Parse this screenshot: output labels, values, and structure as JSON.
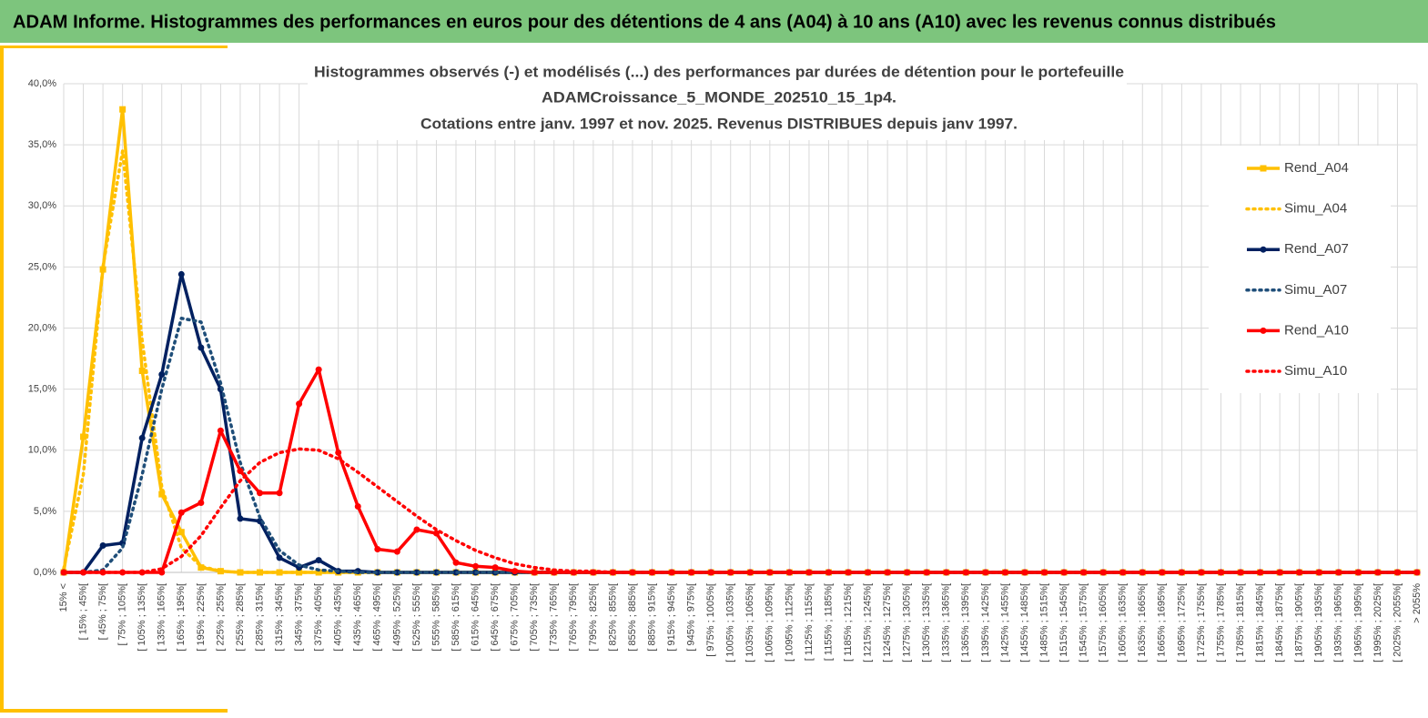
{
  "header": {
    "title": "ADAM Informe. Histogrammes des performances en euros pour des détentions de 4 ans (A04) à 10 ans (A10) avec les revenus connus distribués"
  },
  "chart_data": {
    "type": "line",
    "title": [
      "Histogrammes observés (-) et modélisés (...) des performances  par durées de détention pour le portefeuille",
      "ADAMCroissance_5_MONDE_202510_15_1p4.",
      "Cotations entre janv. 1997 et nov. 2025. Revenus DISTRIBUES depuis janv 1997."
    ],
    "categories": [
      "15% <",
      "[ 15% ; 45%[",
      "[ 45% ; 75%[",
      "[ 75% ; 105%[",
      "[ 105% ; 135%[",
      "[ 135% ; 165%[",
      "[ 165% ; 195%[",
      "[ 195% ; 225%[",
      "[ 225% ; 255%[",
      "[ 255% ; 285%[",
      "[ 285% ; 315%[",
      "[ 315% ; 345%[",
      "[ 345% ; 375%[",
      "[ 375% ; 405%[",
      "[ 405% ; 435%[",
      "[ 435% ; 465%[",
      "[ 465% ; 495%[",
      "[ 495% ; 525%[",
      "[ 525% ; 555%[",
      "[ 555% ; 585%[",
      "[ 585% ; 615%[",
      "[ 615% ; 645%[",
      "[ 645% ; 675%[",
      "[ 675% ; 705%[",
      "[ 705% ; 735%[",
      "[ 735% ; 765%[",
      "[ 765% ; 795%[",
      "[ 795% ; 825%[",
      "[ 825% ; 855%[",
      "[ 855% ; 885%[",
      "[ 885% ; 915%[",
      "[ 915% ; 945%[",
      "[ 945% ; 975%[",
      "[ 975% ; 1005%[",
      "[ 1005% ; 1035%[",
      "[ 1035% ; 1065%[",
      "[ 1065% ; 1095%[",
      "[ 1095% ; 1125%[",
      "[ 1125% ; 1155%[",
      "[ 1155% ; 1185%[",
      "[ 1185% ; 1215%[",
      "[ 1215% ; 1245%[",
      "[ 1245% ; 1275%[",
      "[ 1275% ; 1305%[",
      "[ 1305% ; 1335%[",
      "[ 1335% ; 1365%[",
      "[ 1365% ; 1395%[",
      "[ 1395% ; 1425%[",
      "[ 1425% ; 1455%[",
      "[ 1455% ; 1485%[",
      "[ 1485% ; 1515%[",
      "[ 1515% ; 1545%[",
      "[ 1545% ; 1575%[",
      "[ 1575% ; 1605%[",
      "[ 1605% ; 1635%[",
      "[ 1635% ; 1665%[",
      "[ 1665% ; 1695%[",
      "[ 1695% ; 1725%[",
      "[ 1725% ; 1755%[",
      "[ 1755% ; 1785%[",
      "[ 1785% ; 1815%[",
      "[ 1815% ; 1845%[",
      "[ 1845% ; 1875%[",
      "[ 1875% ; 1905%[",
      "[ 1905% ; 1935%[",
      "[ 1935% ; 1965%[",
      "[ 1965% ; 1995%[",
      "[ 1995% ; 2025%[",
      "[ 2025% ; 2055%[",
      "> 2055%"
    ],
    "series": [
      {
        "name": "Rend_A04",
        "color": "#FFC000",
        "style": "solid",
        "marker": "square",
        "values": [
          0,
          11.1,
          24.8,
          37.9,
          16.5,
          6.4,
          3.3,
          0.4,
          0.1,
          0,
          0,
          0,
          0,
          0,
          0,
          0,
          0,
          0,
          0,
          0,
          0,
          0,
          0,
          0,
          0,
          0,
          0,
          0,
          0,
          0,
          0,
          0,
          0,
          0,
          0,
          0,
          0,
          0,
          0,
          0,
          0,
          0,
          0,
          0,
          0,
          0,
          0,
          0,
          0,
          0,
          0,
          0,
          0,
          0,
          0,
          0,
          0,
          0,
          0,
          0,
          0,
          0,
          0,
          0,
          0,
          0,
          0,
          0,
          0,
          0
        ]
      },
      {
        "name": "Simu_A04",
        "color": "#FFC000",
        "style": "dotted",
        "values": [
          0.3,
          8,
          25,
          34.5,
          19,
          7,
          2,
          0.5,
          0.1,
          0,
          0,
          0,
          0,
          0,
          0,
          0,
          0,
          0,
          0,
          0,
          0,
          0,
          0,
          0,
          0,
          0,
          0,
          0,
          0,
          0,
          0,
          0,
          0,
          0,
          0,
          0,
          0,
          0,
          0,
          0,
          0,
          0,
          0,
          0,
          0,
          0,
          0,
          0,
          0,
          0,
          0,
          0,
          0,
          0,
          0,
          0,
          0,
          0,
          0,
          0,
          0,
          0,
          0,
          0,
          0,
          0,
          0,
          0,
          0,
          0
        ]
      },
      {
        "name": "Rend_A07",
        "color": "#002060",
        "style": "solid",
        "marker": "circle",
        "values": [
          0,
          0,
          2.2,
          2.4,
          11,
          16.2,
          24.4,
          18.4,
          15,
          4.4,
          4.2,
          1.2,
          0.4,
          1.0,
          0.1,
          0.1,
          0,
          0,
          0,
          0,
          0,
          0,
          0,
          0,
          0,
          0,
          0,
          0,
          0,
          0,
          0,
          0,
          0,
          0,
          0,
          0,
          0,
          0,
          0,
          0,
          0,
          0,
          0,
          0,
          0,
          0,
          0,
          0,
          0,
          0,
          0,
          0,
          0,
          0,
          0,
          0,
          0,
          0,
          0,
          0,
          0,
          0,
          0,
          0,
          0,
          0,
          0,
          0,
          0,
          0
        ]
      },
      {
        "name": "Simu_A07",
        "color": "#1F4E79",
        "style": "dotted",
        "values": [
          0,
          0,
          0.2,
          2,
          8,
          15,
          20.8,
          20.5,
          15.5,
          9,
          4.5,
          1.8,
          0.6,
          0.2,
          0.1,
          0,
          0,
          0,
          0,
          0,
          0,
          0,
          0,
          0,
          0,
          0,
          0,
          0,
          0,
          0,
          0,
          0,
          0,
          0,
          0,
          0,
          0,
          0,
          0,
          0,
          0,
          0,
          0,
          0,
          0,
          0,
          0,
          0,
          0,
          0,
          0,
          0,
          0,
          0,
          0,
          0,
          0,
          0,
          0,
          0,
          0,
          0,
          0,
          0,
          0,
          0,
          0,
          0,
          0,
          0
        ]
      },
      {
        "name": "Rend_A10",
        "color": "#FF0000",
        "style": "solid",
        "marker": "circle",
        "values": [
          0,
          0,
          0,
          0,
          0,
          0,
          4.9,
          5.7,
          11.6,
          8.3,
          6.5,
          6.5,
          13.8,
          16.6,
          9.8,
          5.4,
          1.9,
          1.7,
          3.5,
          3.2,
          0.8,
          0.5,
          0.4,
          0.1,
          0,
          0,
          0,
          0,
          0,
          0,
          0,
          0,
          0,
          0,
          0,
          0,
          0,
          0,
          0,
          0,
          0,
          0,
          0,
          0,
          0,
          0,
          0,
          0,
          0,
          0,
          0,
          0,
          0,
          0,
          0,
          0,
          0,
          0,
          0,
          0,
          0,
          0,
          0,
          0,
          0,
          0,
          0,
          0,
          0,
          0
        ]
      },
      {
        "name": "Simu_A10",
        "color": "#FF0000",
        "style": "dotted",
        "values": [
          0,
          0,
          0,
          0,
          0,
          0.3,
          1.3,
          3,
          5.3,
          7.5,
          9,
          9.8,
          10.1,
          10,
          9.3,
          8.2,
          7,
          5.8,
          4.6,
          3.5,
          2.6,
          1.8,
          1.2,
          0.7,
          0.4,
          0.2,
          0.1,
          0.1,
          0,
          0,
          0,
          0,
          0,
          0,
          0,
          0,
          0,
          0,
          0,
          0,
          0,
          0,
          0,
          0,
          0,
          0,
          0,
          0,
          0,
          0,
          0,
          0,
          0,
          0,
          0,
          0,
          0,
          0,
          0,
          0,
          0,
          0,
          0,
          0,
          0,
          0,
          0,
          0,
          0,
          0
        ]
      }
    ],
    "ylim": [
      0,
      40
    ],
    "yticks": [
      {
        "value": 0,
        "label": "0,0%"
      },
      {
        "value": 5,
        "label": "5,0%"
      },
      {
        "value": 10,
        "label": "10,0%"
      },
      {
        "value": 15,
        "label": "15,0%"
      },
      {
        "value": 20,
        "label": "20,0%"
      },
      {
        "value": 25,
        "label": "25,0%"
      },
      {
        "value": 30,
        "label": "30,0%"
      },
      {
        "value": 35,
        "label": "35,0%"
      },
      {
        "value": 40,
        "label": "40,0%"
      }
    ],
    "grid": true,
    "legend": "right"
  }
}
